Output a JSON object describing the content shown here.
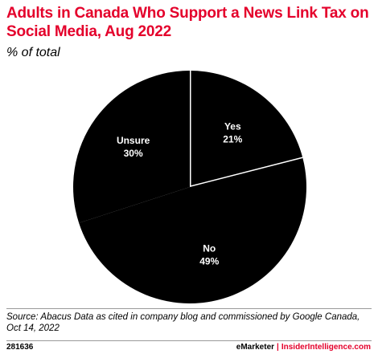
{
  "chart_data": {
    "type": "pie",
    "title": "Adults in Canada Who Support a News Link Tax on Social Media, Aug 2022",
    "subtitle": "% of total",
    "slices": [
      {
        "name": "Yes",
        "value": 21,
        "label": "21%"
      },
      {
        "name": "No",
        "value": 49,
        "label": "49%"
      },
      {
        "name": "Unsure",
        "value": 30,
        "label": "30%"
      }
    ],
    "slice_color": "#000000",
    "separator_color": "#ffffff"
  },
  "source": "Source: Abacus Data as cited in company blog and commissioned by Google Canada, Oct 14, 2022",
  "footer": {
    "id": "281636",
    "brand": "eMarketer",
    "separator": "|",
    "site": "InsiderIntelligence.com"
  },
  "colors": {
    "accent": "#e4002b",
    "rule": "#9a9a9a"
  }
}
